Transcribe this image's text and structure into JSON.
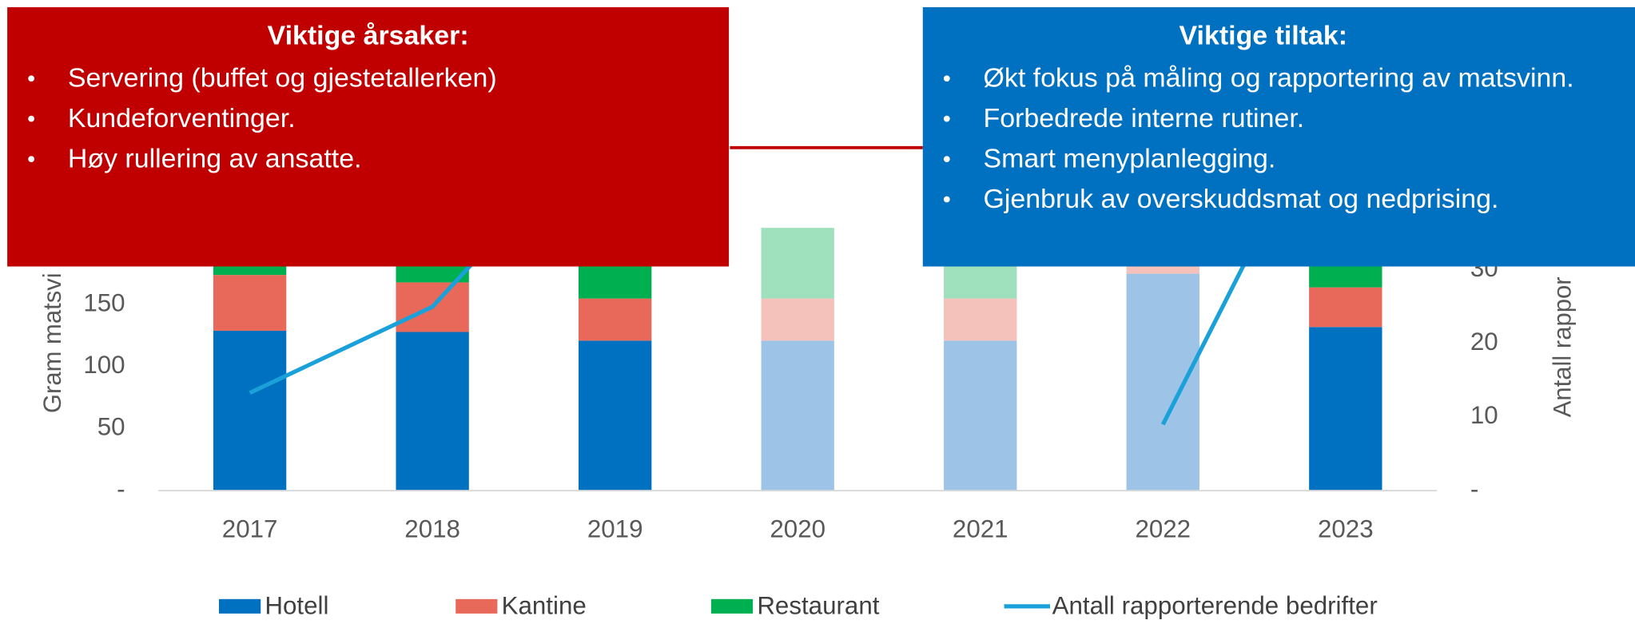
{
  "chart_data": {
    "type": "bar",
    "categories": [
      "2017",
      "2018",
      "2019",
      "2020",
      "2021",
      "2022",
      "2023"
    ],
    "series": [
      {
        "name": "Hotell",
        "color": "#0070c0",
        "colors": [
          "#0070c0",
          "#0070c0",
          "#0070c0",
          "#9dc3e6",
          "#9dc3e6",
          "#9dc3e6",
          "#0070c0"
        ],
        "values": [
          129,
          128,
          121,
          121,
          121,
          175,
          132
        ]
      },
      {
        "name": "Kantine",
        "color": "#e8695a",
        "colors": [
          "#e8695a",
          "#e8695a",
          "#e8695a",
          "#f5c1bb",
          "#f5c1bb",
          "#f5c1bb",
          "#e8695a"
        ],
        "values": [
          45,
          40,
          34,
          34,
          34,
          8,
          32
        ]
      },
      {
        "name": "Restaurant",
        "color": "#00b050",
        "colors": [
          "#00b050",
          "#00b050",
          "#00b050",
          "#9fe0bd",
          "#9fe0bd",
          "#9fe0bd",
          "#00b050"
        ],
        "values": [
          15,
          15,
          30,
          57,
          57,
          20,
          20
        ]
      },
      {
        "name": "Antall rapporterende bedrifter",
        "type": "line",
        "axis": "y2",
        "color": "#1ba1d9",
        "values": [
          13.3,
          25,
          52,
          null,
          null,
          9,
          58
        ]
      }
    ],
    "ylabel": "Gram matsvi",
    "y2label": "Antall rappor",
    "ylim": [
      0,
      350
    ],
    "yticks": [
      {
        "value": 0,
        "label": "-"
      },
      50,
      100,
      150
    ],
    "y2lim": [
      0,
      59
    ],
    "y2ticks": [
      {
        "value": 0,
        "label": "-"
      },
      10,
      20,
      30
    ],
    "annotations": [
      {
        "title": "Viktige årsaker:",
        "color": "#c00000",
        "items": [
          "Servering (buffet og gjestetallerken)",
          "Kundeforventinger.",
          "Høy rullering av ansatte."
        ]
      },
      {
        "title": "Viktige tiltak:",
        "color": "#0070c0",
        "items": [
          "Økt fokus på måling og rapportering av matsvinn.",
          "Forbedrede interne rutiner.",
          "Smart menyplanlegging.",
          "Gjenbruk av overskuddsmat og nedprising."
        ]
      }
    ]
  }
}
